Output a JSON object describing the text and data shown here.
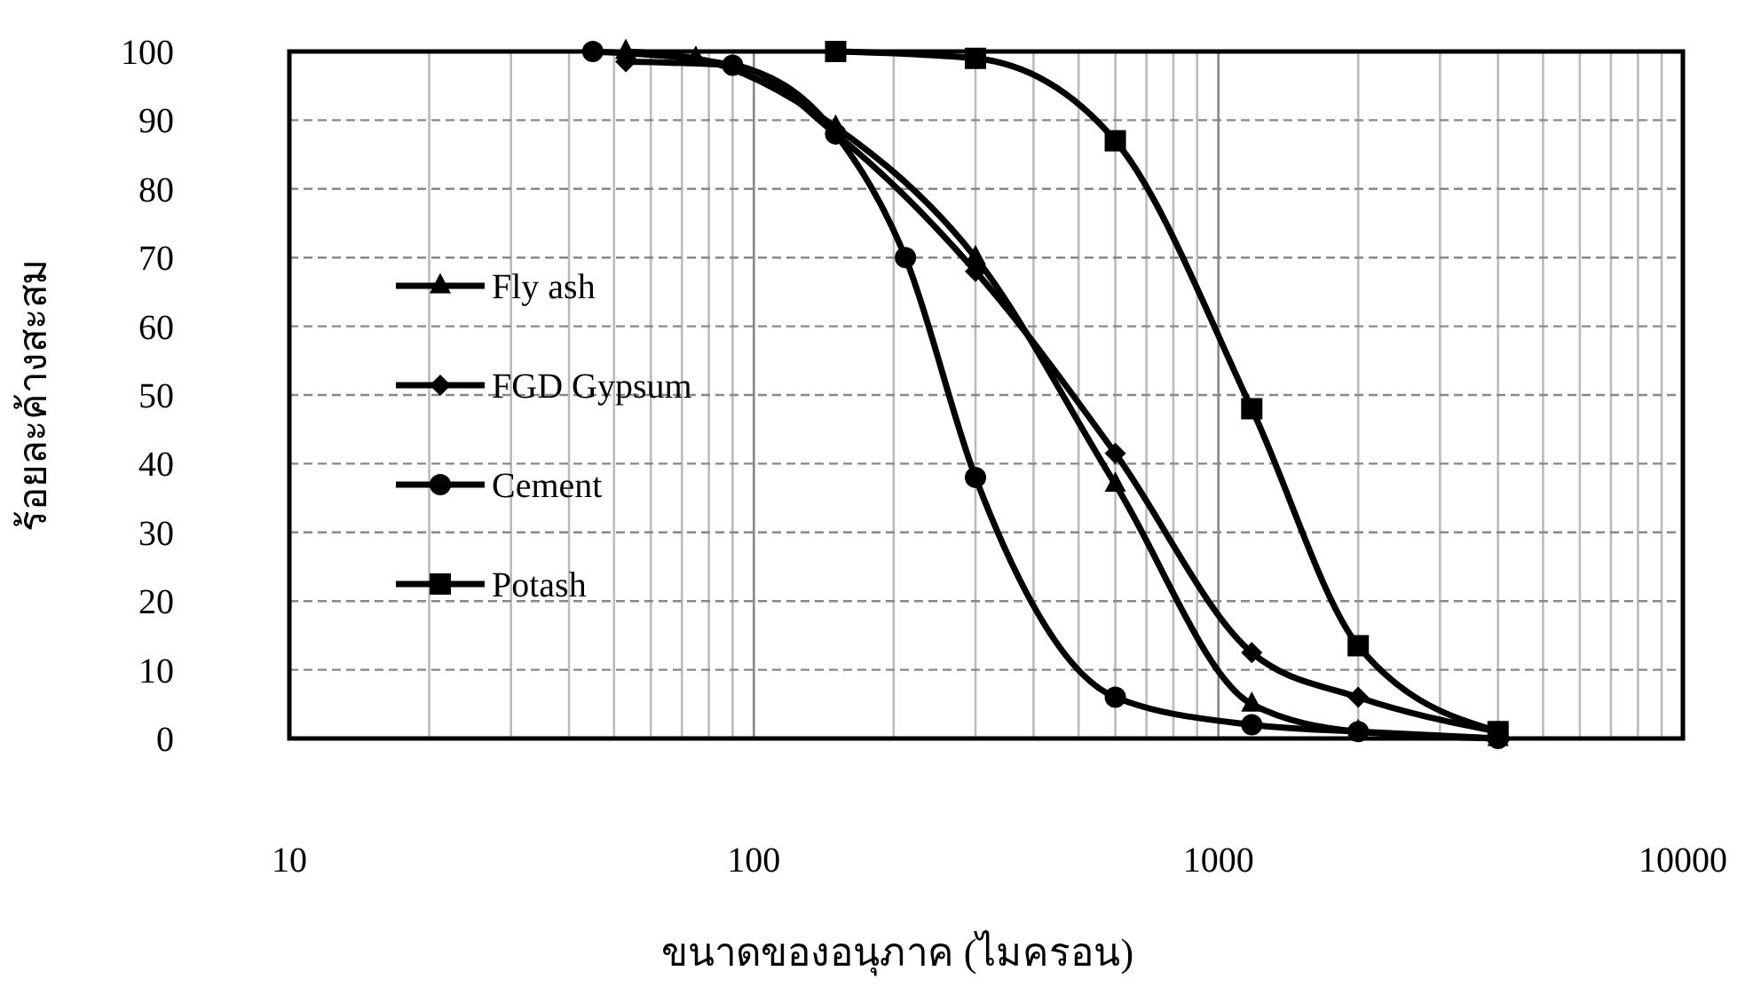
{
  "chart_data": {
    "type": "line",
    "xlabel": "ขนาดของอนุภาค (ไมครอน)",
    "ylabel": "ร้อยละค้างสะสม",
    "log": "x",
    "grid": true,
    "legend": "left",
    "line_style": "solid",
    "xlim": [
      10,
      10000
    ],
    "xticks": [
      10,
      100,
      1000,
      10000
    ],
    "ylim": [
      0,
      100
    ],
    "yticks": [
      0,
      10,
      20,
      30,
      40,
      50,
      60,
      70,
      80,
      90,
      100
    ],
    "series": [
      {
        "name": "Fly ash",
        "color": "#000000",
        "marker": "triangle",
        "x": [
          53,
          75,
          150,
          300,
          600,
          1180,
          2000,
          4000
        ],
        "values": [
          100,
          99,
          89,
          70,
          37,
          5,
          1,
          0
        ]
      },
      {
        "name": "FGD Gypsum",
        "color": "#000000",
        "marker": "diamond",
        "x": [
          53,
          90,
          150,
          300,
          600,
          1180,
          2000,
          4000
        ],
        "values": [
          98.5,
          98,
          88,
          68,
          41.5,
          12.5,
          6,
          1
        ]
      },
      {
        "name": "Cement",
        "color": "#000000",
        "marker": "circle",
        "x": [
          45,
          90,
          150,
          212,
          300,
          600,
          1180,
          2000,
          4000
        ],
        "values": [
          100,
          98,
          88,
          70,
          38,
          6,
          2,
          1,
          0
        ]
      },
      {
        "name": "Potash",
        "color": "#000000",
        "marker": "square",
        "x": [
          150,
          300,
          600,
          1180,
          2000,
          4000
        ],
        "values": [
          100,
          99,
          87,
          48,
          13.5,
          1
        ]
      }
    ]
  }
}
